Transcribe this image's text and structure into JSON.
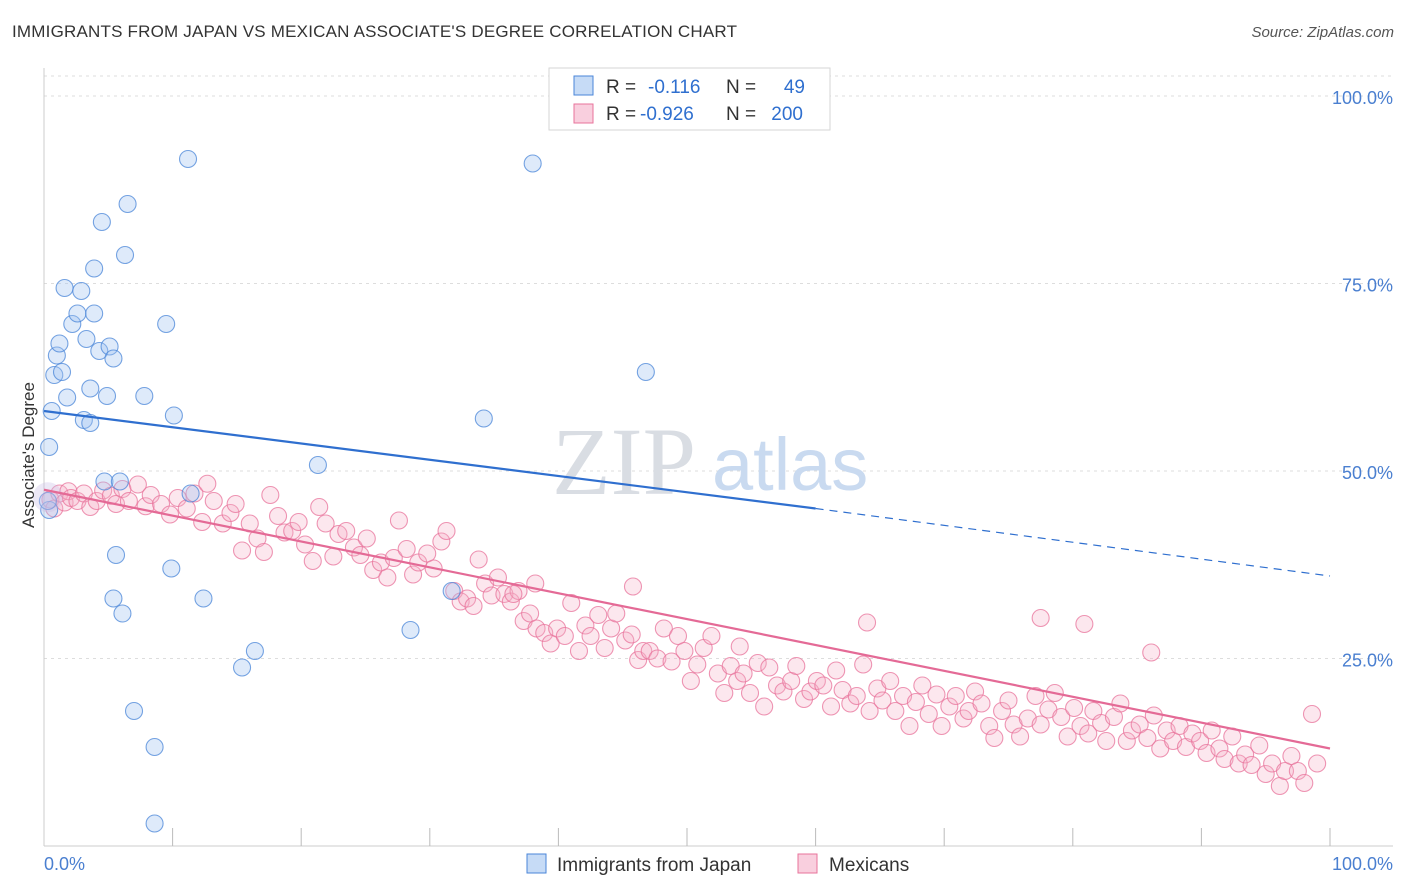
{
  "title": "IMMIGRANTS FROM JAPAN VS MEXICAN ASSOCIATE'S DEGREE CORRELATION CHART",
  "source": "Source: ZipAtlas.com",
  "watermark": {
    "zip": "ZIP",
    "atlas": "atlas"
  },
  "colors": {
    "blue": "#4a86d8",
    "blue_fill": "rgba(160,195,240,0.35)",
    "pink": "#e8739b",
    "pink_fill": "rgba(245,175,200,0.30)",
    "tick": "#4a7fd0",
    "grid": "#dddddd"
  },
  "chart_data": {
    "type": "scatter",
    "xlabel": "",
    "ylabel": "Associate's Degree",
    "xlim": [
      0,
      100
    ],
    "ylim": [
      0,
      100
    ],
    "x_tick_labels": [
      "0.0%",
      "100.0%"
    ],
    "y_ticks": [
      {
        "value": 100,
        "label": "100.0%"
      },
      {
        "value": 75,
        "label": "75.0%"
      },
      {
        "value": 50,
        "label": "50.0%"
      },
      {
        "value": 25,
        "label": "25.0%"
      }
    ],
    "legend": {
      "position": "top-center",
      "rows": [
        {
          "r_label": "R =",
          "r_value": "-0.116",
          "n_label": "N =",
          "n_value": "49"
        },
        {
          "r_label": "R =",
          "r_value": "-0.926",
          "n_label": "N =",
          "n_value": "200"
        }
      ]
    },
    "bottom_legend": [
      "Immigrants from Japan",
      "Mexicans"
    ],
    "series": [
      {
        "name": "Immigrants from Japan",
        "trend": {
          "x0": 0,
          "y0": 58,
          "x1": 60,
          "y1": 45,
          "dash_to_x": 100,
          "dash_to_y": 36
        },
        "points": [
          [
            0.4,
            44.8
          ],
          [
            0.4,
            53.2
          ],
          [
            0.6,
            58.0
          ],
          [
            0.8,
            62.8
          ],
          [
            1.0,
            65.4
          ],
          [
            1.2,
            67.0
          ],
          [
            1.4,
            63.2
          ],
          [
            1.6,
            74.4
          ],
          [
            1.8,
            59.8
          ],
          [
            2.2,
            69.6
          ],
          [
            2.6,
            71.0
          ],
          [
            2.9,
            74.0
          ],
          [
            3.1,
            56.8
          ],
          [
            3.3,
            67.6
          ],
          [
            3.6,
            61.0
          ],
          [
            3.6,
            56.4
          ],
          [
            3.9,
            77.0
          ],
          [
            3.9,
            71.0
          ],
          [
            4.3,
            66.0
          ],
          [
            4.5,
            83.2
          ],
          [
            4.7,
            48.6
          ],
          [
            4.9,
            60.0
          ],
          [
            5.1,
            66.6
          ],
          [
            5.4,
            65.0
          ],
          [
            5.6,
            38.8
          ],
          [
            5.4,
            33.0
          ],
          [
            5.9,
            48.6
          ],
          [
            6.1,
            31.0
          ],
          [
            6.3,
            78.8
          ],
          [
            6.5,
            85.6
          ],
          [
            7.0,
            18.0
          ],
          [
            7.8,
            60.0
          ],
          [
            8.6,
            13.2
          ],
          [
            8.6,
            3.0
          ],
          [
            9.5,
            69.6
          ],
          [
            9.9,
            37.0
          ],
          [
            10.1,
            57.4
          ],
          [
            11.2,
            91.6
          ],
          [
            11.4,
            47.0
          ],
          [
            12.4,
            33.0
          ],
          [
            15.4,
            23.8
          ],
          [
            16.4,
            26.0
          ],
          [
            21.3,
            50.8
          ],
          [
            28.5,
            28.8
          ],
          [
            31.7,
            34.0
          ],
          [
            34.2,
            57.0
          ],
          [
            38.0,
            91.0
          ],
          [
            46.8,
            63.2
          ],
          [
            0.3,
            46.0
          ]
        ]
      },
      {
        "name": "Mexicans",
        "trend": {
          "x0": 0,
          "y0": 47.5,
          "x1": 100,
          "y1": 13
        },
        "points": [
          [
            0.5,
            46.2
          ],
          [
            0.8,
            45.0
          ],
          [
            1.2,
            47.0
          ],
          [
            1.6,
            45.8
          ],
          [
            1.9,
            47.3
          ],
          [
            2.1,
            46.4
          ],
          [
            2.6,
            46.0
          ],
          [
            3.1,
            47.0
          ],
          [
            3.6,
            45.2
          ],
          [
            4.1,
            46.0
          ],
          [
            4.6,
            47.4
          ],
          [
            5.2,
            46.7
          ],
          [
            5.6,
            45.6
          ],
          [
            6.1,
            47.6
          ],
          [
            6.6,
            46.0
          ],
          [
            7.3,
            48.2
          ],
          [
            7.9,
            45.3
          ],
          [
            8.3,
            46.8
          ],
          [
            9.1,
            45.6
          ],
          [
            9.8,
            44.2
          ],
          [
            10.4,
            46.4
          ],
          [
            11.1,
            45.0
          ],
          [
            11.7,
            47.0
          ],
          [
            12.3,
            43.2
          ],
          [
            12.7,
            48.3
          ],
          [
            13.2,
            46.0
          ],
          [
            13.9,
            43.0
          ],
          [
            14.5,
            44.4
          ],
          [
            14.9,
            45.6
          ],
          [
            15.4,
            39.4
          ],
          [
            16.0,
            43.0
          ],
          [
            16.6,
            41.0
          ],
          [
            17.1,
            39.2
          ],
          [
            17.6,
            46.8
          ],
          [
            18.2,
            44.0
          ],
          [
            18.7,
            41.8
          ],
          [
            19.3,
            42.0
          ],
          [
            19.8,
            43.2
          ],
          [
            20.3,
            40.2
          ],
          [
            20.9,
            38.0
          ],
          [
            21.4,
            45.2
          ],
          [
            21.9,
            43.0
          ],
          [
            22.5,
            38.6
          ],
          [
            22.9,
            41.6
          ],
          [
            23.5,
            42.0
          ],
          [
            24.1,
            39.8
          ],
          [
            24.6,
            38.8
          ],
          [
            25.1,
            41.0
          ],
          [
            25.6,
            36.8
          ],
          [
            26.2,
            37.8
          ],
          [
            26.7,
            35.8
          ],
          [
            27.2,
            38.4
          ],
          [
            27.6,
            43.4
          ],
          [
            28.2,
            39.6
          ],
          [
            28.7,
            36.2
          ],
          [
            29.1,
            37.8
          ],
          [
            29.8,
            39.0
          ],
          [
            30.3,
            37.0
          ],
          [
            30.9,
            40.6
          ],
          [
            31.3,
            42.0
          ],
          [
            31.9,
            34.0
          ],
          [
            32.4,
            32.6
          ],
          [
            32.9,
            33.0
          ],
          [
            33.4,
            32.0
          ],
          [
            33.8,
            38.2
          ],
          [
            34.3,
            35.0
          ],
          [
            34.8,
            33.4
          ],
          [
            35.3,
            35.8
          ],
          [
            35.8,
            33.6
          ],
          [
            36.3,
            32.6
          ],
          [
            36.9,
            34.0
          ],
          [
            37.3,
            30.0
          ],
          [
            37.8,
            31.0
          ],
          [
            38.3,
            29.0
          ],
          [
            38.9,
            28.4
          ],
          [
            39.4,
            27.0
          ],
          [
            39.9,
            29.0
          ],
          [
            40.5,
            28.0
          ],
          [
            41.0,
            32.4
          ],
          [
            41.6,
            26.0
          ],
          [
            42.1,
            29.4
          ],
          [
            42.5,
            28.0
          ],
          [
            43.1,
            30.8
          ],
          [
            43.6,
            26.4
          ],
          [
            44.1,
            29.0
          ],
          [
            44.5,
            31.0
          ],
          [
            45.2,
            27.4
          ],
          [
            45.7,
            28.2
          ],
          [
            46.2,
            24.8
          ],
          [
            46.6,
            26.0
          ],
          [
            47.1,
            26.0
          ],
          [
            47.7,
            25.0
          ],
          [
            48.2,
            29.0
          ],
          [
            48.8,
            24.6
          ],
          [
            49.3,
            28.0
          ],
          [
            49.8,
            26.0
          ],
          [
            50.3,
            22.0
          ],
          [
            50.8,
            24.2
          ],
          [
            51.3,
            26.4
          ],
          [
            51.9,
            28.0
          ],
          [
            52.4,
            23.0
          ],
          [
            52.9,
            20.4
          ],
          [
            53.4,
            24.0
          ],
          [
            53.9,
            22.0
          ],
          [
            54.4,
            23.0
          ],
          [
            54.9,
            20.4
          ],
          [
            55.5,
            24.4
          ],
          [
            56.0,
            18.6
          ],
          [
            56.4,
            23.8
          ],
          [
            57.0,
            21.4
          ],
          [
            57.5,
            20.6
          ],
          [
            58.1,
            22.0
          ],
          [
            58.5,
            24.0
          ],
          [
            59.1,
            19.6
          ],
          [
            59.6,
            20.6
          ],
          [
            60.1,
            22.0
          ],
          [
            60.6,
            21.4
          ],
          [
            61.2,
            18.6
          ],
          [
            61.6,
            23.4
          ],
          [
            62.1,
            20.8
          ],
          [
            62.7,
            19.0
          ],
          [
            63.2,
            20.0
          ],
          [
            63.7,
            24.2
          ],
          [
            64.2,
            18.0
          ],
          [
            64.8,
            21.0
          ],
          [
            65.2,
            19.4
          ],
          [
            65.8,
            22.0
          ],
          [
            66.2,
            18.0
          ],
          [
            66.8,
            20.0
          ],
          [
            67.3,
            16.0
          ],
          [
            67.8,
            19.2
          ],
          [
            68.3,
            21.4
          ],
          [
            68.8,
            17.6
          ],
          [
            69.4,
            20.2
          ],
          [
            69.8,
            16.0
          ],
          [
            70.4,
            18.6
          ],
          [
            70.9,
            20.0
          ],
          [
            71.5,
            17.0
          ],
          [
            71.9,
            18.0
          ],
          [
            72.4,
            20.6
          ],
          [
            72.9,
            19.0
          ],
          [
            73.5,
            16.0
          ],
          [
            73.9,
            14.4
          ],
          [
            74.5,
            18.0
          ],
          [
            75.0,
            19.4
          ],
          [
            75.4,
            16.2
          ],
          [
            75.9,
            14.6
          ],
          [
            76.5,
            17.0
          ],
          [
            77.1,
            20.0
          ],
          [
            77.5,
            16.2
          ],
          [
            78.1,
            18.2
          ],
          [
            78.6,
            20.4
          ],
          [
            79.1,
            17.2
          ],
          [
            79.6,
            14.6
          ],
          [
            80.1,
            18.4
          ],
          [
            80.6,
            16.0
          ],
          [
            81.2,
            15.0
          ],
          [
            81.6,
            18.0
          ],
          [
            82.2,
            16.4
          ],
          [
            82.6,
            14.0
          ],
          [
            83.2,
            17.2
          ],
          [
            83.7,
            19.0
          ],
          [
            84.2,
            14.0
          ],
          [
            84.6,
            15.4
          ],
          [
            85.2,
            16.2
          ],
          [
            85.8,
            14.4
          ],
          [
            86.3,
            17.4
          ],
          [
            86.8,
            13.0
          ],
          [
            87.3,
            15.4
          ],
          [
            87.8,
            14.0
          ],
          [
            88.3,
            16.0
          ],
          [
            88.8,
            13.2
          ],
          [
            89.3,
            15.0
          ],
          [
            89.9,
            14.0
          ],
          [
            90.4,
            12.4
          ],
          [
            90.8,
            15.4
          ],
          [
            91.4,
            13.0
          ],
          [
            91.8,
            11.6
          ],
          [
            92.4,
            14.6
          ],
          [
            92.9,
            11.0
          ],
          [
            93.4,
            12.2
          ],
          [
            93.9,
            10.8
          ],
          [
            94.5,
            13.4
          ],
          [
            95.0,
            9.6
          ],
          [
            95.5,
            11.0
          ],
          [
            96.1,
            8.0
          ],
          [
            96.5,
            10.0
          ],
          [
            97.0,
            12.0
          ],
          [
            97.5,
            10.0
          ],
          [
            98.0,
            8.4
          ],
          [
            98.6,
            17.6
          ],
          [
            99.0,
            11.0
          ],
          [
            36.5,
            33.6
          ],
          [
            38.2,
            35.0
          ],
          [
            45.8,
            34.6
          ],
          [
            54.1,
            26.6
          ],
          [
            64.0,
            29.8
          ],
          [
            77.5,
            30.4
          ],
          [
            80.9,
            29.6
          ],
          [
            86.1,
            25.8
          ]
        ]
      }
    ]
  }
}
